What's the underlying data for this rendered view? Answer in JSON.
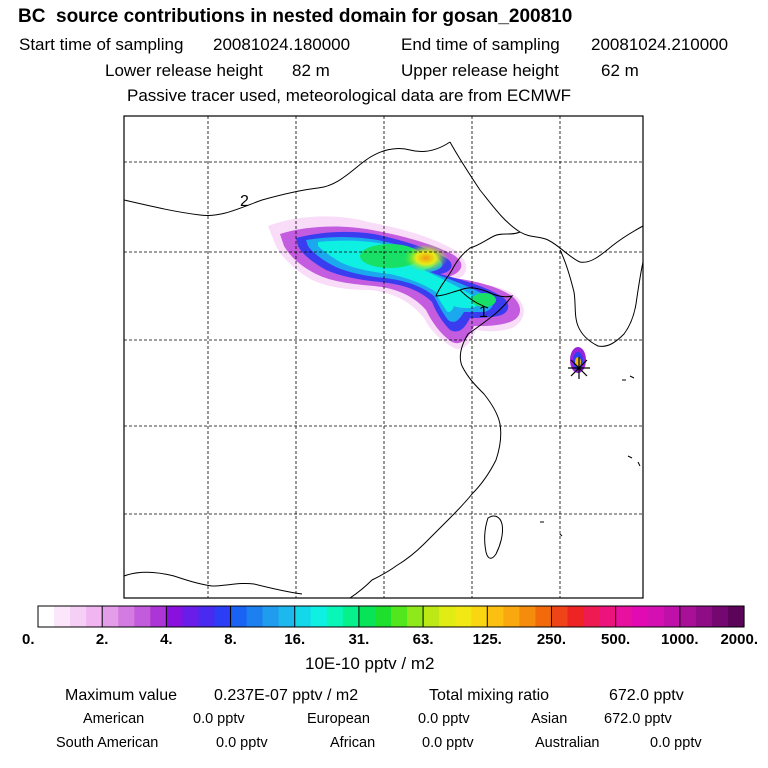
{
  "header": {
    "title": "BC  source contributions in nested domain for gosan_200810",
    "start_label": "Start time of sampling",
    "start_value": "20081024.180000",
    "end_label": "End time of sampling",
    "end_value": "20081024.210000",
    "lower_label": "Lower release height",
    "lower_value": "82 m",
    "upper_label": "Upper release height",
    "upper_value": "62 m",
    "note": "Passive tracer used, meteorological data are from ECMWF"
  },
  "map": {
    "labels": [
      "2",
      "1"
    ],
    "receptor_marker": "star-icon"
  },
  "chart_data": {
    "type": "heatmap",
    "title": "BC  source contributions in nested domain for gosan_200810",
    "colorbar": {
      "unit": "10E-10 pptv / m2",
      "ticks": [
        "0.",
        "2.",
        "4.",
        "8.",
        "16.",
        "31.",
        "63.",
        "125.",
        "250.",
        "500.",
        "1000.",
        "2000."
      ],
      "colors": [
        "#ffffff",
        "#fbe6fb",
        "#f6cff6",
        "#f1b6f1",
        "#e49de9",
        "#d47be2",
        "#c25bdc",
        "#ad34d6",
        "#8a11dd",
        "#6a1ce8",
        "#4a2af0",
        "#2b3ef5",
        "#1a62f3",
        "#1c80f0",
        "#1f9cee",
        "#1cb8ee",
        "#13d8ea",
        "#0ef0e2",
        "#08f6b8",
        "#06f08c",
        "#08e458",
        "#1ce02c",
        "#52e61c",
        "#8ee81a",
        "#bce816",
        "#e0ec14",
        "#f2e814",
        "#fad612",
        "#fcc010",
        "#f9a80e",
        "#f68c0c",
        "#f36a0c",
        "#ef4418",
        "#ee2424",
        "#ee1a52",
        "#ec147c",
        "#e8109e",
        "#e20ab2",
        "#d410b2",
        "#c010aa",
        "#a81098",
        "#8e0c86",
        "#740870",
        "#5c045a"
      ]
    },
    "max_value_label": "Maximum value",
    "max_value": "0.237E-07 pptv / m2",
    "total_label": "Total mixing ratio",
    "total_value": "672.0 pptv",
    "contributions": [
      {
        "name": "American",
        "value": "0.0 pptv"
      },
      {
        "name": "European",
        "value": "0.0 pptv"
      },
      {
        "name": "Asian",
        "value": "672.0 pptv"
      },
      {
        "name": "South American",
        "value": "0.0 pptv"
      },
      {
        "name": "African",
        "value": "0.0 pptv"
      },
      {
        "name": "Australian",
        "value": "0.0 pptv"
      }
    ]
  },
  "colors": {
    "frame": "#000000",
    "grid": "#000000"
  }
}
